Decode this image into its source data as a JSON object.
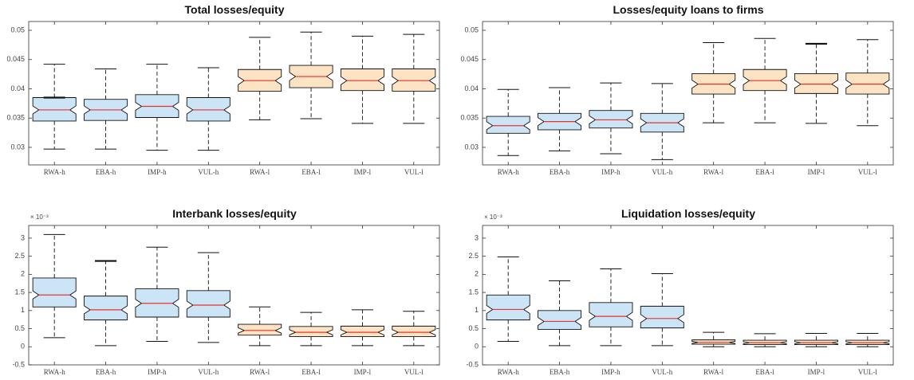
{
  "chart_data": [
    {
      "type": "boxplot",
      "title": "Total losses/equity",
      "categories": [
        "RWA-h",
        "EBA-h",
        "IMP-h",
        "VUL-h",
        "RWA-l",
        "EBA-l",
        "IMP-l",
        "VUL-l"
      ],
      "ylim": [
        0.027,
        0.0515
      ],
      "yticks": [
        "0.03",
        "0.035",
        "0.04",
        "0.045",
        "0.05"
      ],
      "tick_values": [
        0.03,
        0.035,
        0.04,
        0.045,
        0.05
      ],
      "multiplier": "",
      "grid": false,
      "boxes": [
        {
          "whisker_low": 0.0297,
          "q1": 0.0345,
          "median": 0.0364,
          "q3": 0.0385,
          "whisker_high": 0.0442,
          "outlier_high": 0.0385
        },
        {
          "whisker_low": 0.0297,
          "q1": 0.0346,
          "median": 0.0364,
          "q3": 0.0382,
          "whisker_high": 0.0434
        },
        {
          "whisker_low": 0.0295,
          "q1": 0.0351,
          "median": 0.037,
          "q3": 0.039,
          "whisker_high": 0.0442
        },
        {
          "whisker_low": 0.0295,
          "q1": 0.0345,
          "median": 0.0364,
          "q3": 0.0385,
          "whisker_high": 0.0436
        },
        {
          "whisker_low": 0.0347,
          "q1": 0.0396,
          "median": 0.0414,
          "q3": 0.0433,
          "whisker_high": 0.0488
        },
        {
          "whisker_low": 0.0349,
          "q1": 0.0402,
          "median": 0.0421,
          "q3": 0.044,
          "whisker_high": 0.0497
        },
        {
          "whisker_low": 0.0341,
          "q1": 0.0397,
          "median": 0.0414,
          "q3": 0.0434,
          "whisker_high": 0.049
        },
        {
          "whisker_low": 0.0341,
          "q1": 0.0396,
          "median": 0.0414,
          "q3": 0.0434,
          "whisker_high": 0.0493
        }
      ]
    },
    {
      "type": "boxplot",
      "title": "Losses/equity loans to firms",
      "categories": [
        "RWA-h",
        "EBA-h",
        "IMP-h",
        "VUL-h",
        "RWA-l",
        "EBA-l",
        "IMP-l",
        "VUL-l"
      ],
      "ylim": [
        0.027,
        0.0515
      ],
      "yticks": [
        "0.03",
        "0.035",
        "0.04",
        "0.045",
        "0.05"
      ],
      "tick_values": [
        0.03,
        0.035,
        0.04,
        0.045,
        0.05
      ],
      "multiplier": "",
      "grid": false,
      "boxes": [
        {
          "whisker_low": 0.0286,
          "q1": 0.0324,
          "median": 0.0337,
          "q3": 0.0353,
          "whisker_high": 0.0399
        },
        {
          "whisker_low": 0.0294,
          "q1": 0.033,
          "median": 0.0344,
          "q3": 0.0358,
          "whisker_high": 0.0402
        },
        {
          "whisker_low": 0.0289,
          "q1": 0.0333,
          "median": 0.0347,
          "q3": 0.0363,
          "whisker_high": 0.041
        },
        {
          "whisker_low": 0.0279,
          "q1": 0.0326,
          "median": 0.0342,
          "q3": 0.0358,
          "whisker_high": 0.0409
        },
        {
          "whisker_low": 0.0342,
          "q1": 0.0391,
          "median": 0.0408,
          "q3": 0.0426,
          "whisker_high": 0.0479
        },
        {
          "whisker_low": 0.0342,
          "q1": 0.0397,
          "median": 0.0414,
          "q3": 0.0433,
          "whisker_high": 0.0486
        },
        {
          "whisker_low": 0.0341,
          "q1": 0.0392,
          "median": 0.0408,
          "q3": 0.0426,
          "whisker_high": 0.0477,
          "outlier_high": 0.0477
        },
        {
          "whisker_low": 0.0337,
          "q1": 0.0391,
          "median": 0.0408,
          "q3": 0.0427,
          "whisker_high": 0.0484
        }
      ]
    },
    {
      "type": "boxplot",
      "title": "Interbank losses/equity",
      "categories": [
        "RWA-h",
        "EBA-h",
        "IMP-h",
        "VUL-h",
        "RWA-l",
        "EBA-l",
        "IMP-l",
        "VUL-l"
      ],
      "ylim": [
        -0.5,
        3.35
      ],
      "yticks": [
        "-0.5",
        "0",
        "0.5",
        "1",
        "1.5",
        "2",
        "2.5",
        "3"
      ],
      "tick_values": [
        -0.5,
        0,
        0.5,
        1,
        1.5,
        2,
        2.5,
        3
      ],
      "multiplier": "× 10⁻³",
      "grid": false,
      "boxes": [
        {
          "whisker_low": 0.25,
          "q1": 1.1,
          "median": 1.43,
          "q3": 1.9,
          "whisker_high": 3.1
        },
        {
          "whisker_low": 0.03,
          "q1": 0.74,
          "median": 1.02,
          "q3": 1.4,
          "whisker_high": 2.37,
          "outlier_high": 2.37
        },
        {
          "whisker_low": 0.15,
          "q1": 0.82,
          "median": 1.2,
          "q3": 1.6,
          "whisker_high": 2.75
        },
        {
          "whisker_low": 0.12,
          "q1": 0.82,
          "median": 1.15,
          "q3": 1.55,
          "whisker_high": 2.6
        },
        {
          "whisker_low": 0.03,
          "q1": 0.32,
          "median": 0.45,
          "q3": 0.62,
          "whisker_high": 1.1
        },
        {
          "whisker_low": 0.03,
          "q1": 0.28,
          "median": 0.4,
          "q3": 0.56,
          "whisker_high": 0.95
        },
        {
          "whisker_low": 0.03,
          "q1": 0.28,
          "median": 0.4,
          "q3": 0.57,
          "whisker_high": 1.02
        },
        {
          "whisker_low": 0.03,
          "q1": 0.28,
          "median": 0.4,
          "q3": 0.57,
          "whisker_high": 0.98
        }
      ]
    },
    {
      "type": "boxplot",
      "title": "Liquidation losses/equity",
      "categories": [
        "RWA-h",
        "EBA-h",
        "IMP-h",
        "VUL-h",
        "RWA-l",
        "EBA-l",
        "IMP-l",
        "VUL-l"
      ],
      "ylim": [
        -0.5,
        3.35
      ],
      "yticks": [
        "-0.5",
        "0",
        "0.5",
        "1",
        "1.5",
        "2",
        "2.5",
        "3"
      ],
      "tick_values": [
        -0.5,
        0,
        0.5,
        1,
        1.5,
        2,
        2.5,
        3
      ],
      "multiplier": "× 10⁻³",
      "grid": false,
      "boxes": [
        {
          "whisker_low": 0.15,
          "q1": 0.74,
          "median": 1.03,
          "q3": 1.43,
          "whisker_high": 2.48
        },
        {
          "whisker_low": 0.03,
          "q1": 0.48,
          "median": 0.7,
          "q3": 1.0,
          "whisker_high": 1.82
        },
        {
          "whisker_low": 0.03,
          "q1": 0.55,
          "median": 0.84,
          "q3": 1.22,
          "whisker_high": 2.15
        },
        {
          "whisker_low": 0.03,
          "q1": 0.52,
          "median": 0.78,
          "q3": 1.12,
          "whisker_high": 2.02
        },
        {
          "whisker_low": 0.0,
          "q1": 0.07,
          "median": 0.12,
          "q3": 0.19,
          "whisker_high": 0.4
        },
        {
          "whisker_low": 0.0,
          "q1": 0.06,
          "median": 0.11,
          "q3": 0.18,
          "whisker_high": 0.36
        },
        {
          "whisker_low": 0.0,
          "q1": 0.06,
          "median": 0.11,
          "q3": 0.18,
          "whisker_high": 0.37
        },
        {
          "whisker_low": 0.0,
          "q1": 0.06,
          "median": 0.11,
          "q3": 0.18,
          "whisker_high": 0.37
        }
      ]
    }
  ],
  "colors": {
    "box_high": "#cce5f6",
    "box_low": "#fbe3c4",
    "median": "#e8322e",
    "axis": "#333333",
    "box_edge": "#111111"
  }
}
